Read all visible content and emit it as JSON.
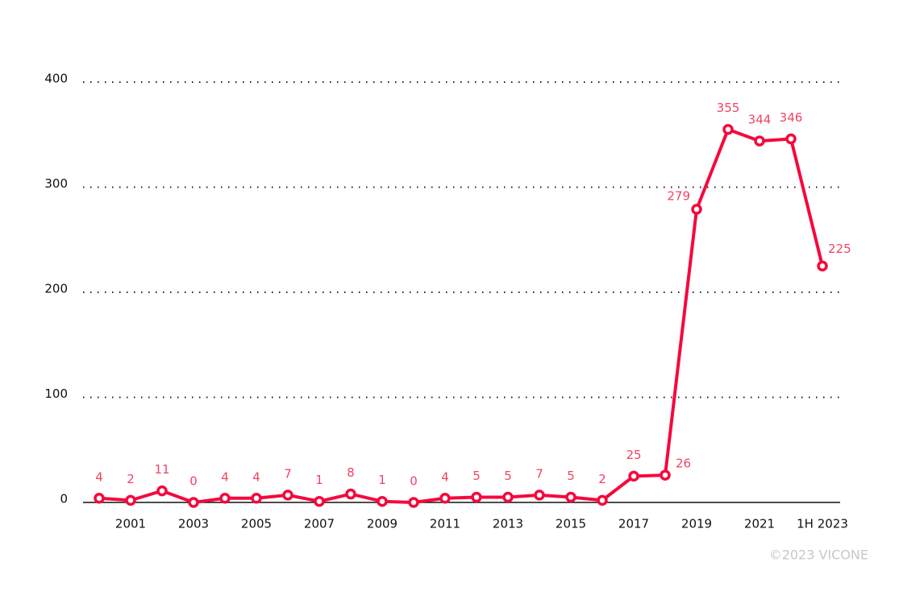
{
  "chart_data": {
    "type": "line",
    "categories": [
      null,
      "2001",
      null,
      "2003",
      null,
      "2005",
      null,
      "2007",
      null,
      "2009",
      null,
      "2011",
      null,
      "2013",
      null,
      "2015",
      null,
      "2017",
      null,
      "2019",
      null,
      "2021",
      null,
      "1H 2023"
    ],
    "series": [
      {
        "color": "#f5093c",
        "values": [
          4,
          2,
          11,
          0,
          4,
          4,
          7,
          1,
          8,
          1,
          0,
          4,
          5,
          5,
          7,
          5,
          2,
          25,
          26,
          279,
          355,
          344,
          346,
          225
        ]
      }
    ],
    "ylim": [
      0,
      400
    ],
    "yticks": [
      0,
      100,
      200,
      300,
      400
    ],
    "grid": true,
    "credit": "©2023 VICONE"
  }
}
